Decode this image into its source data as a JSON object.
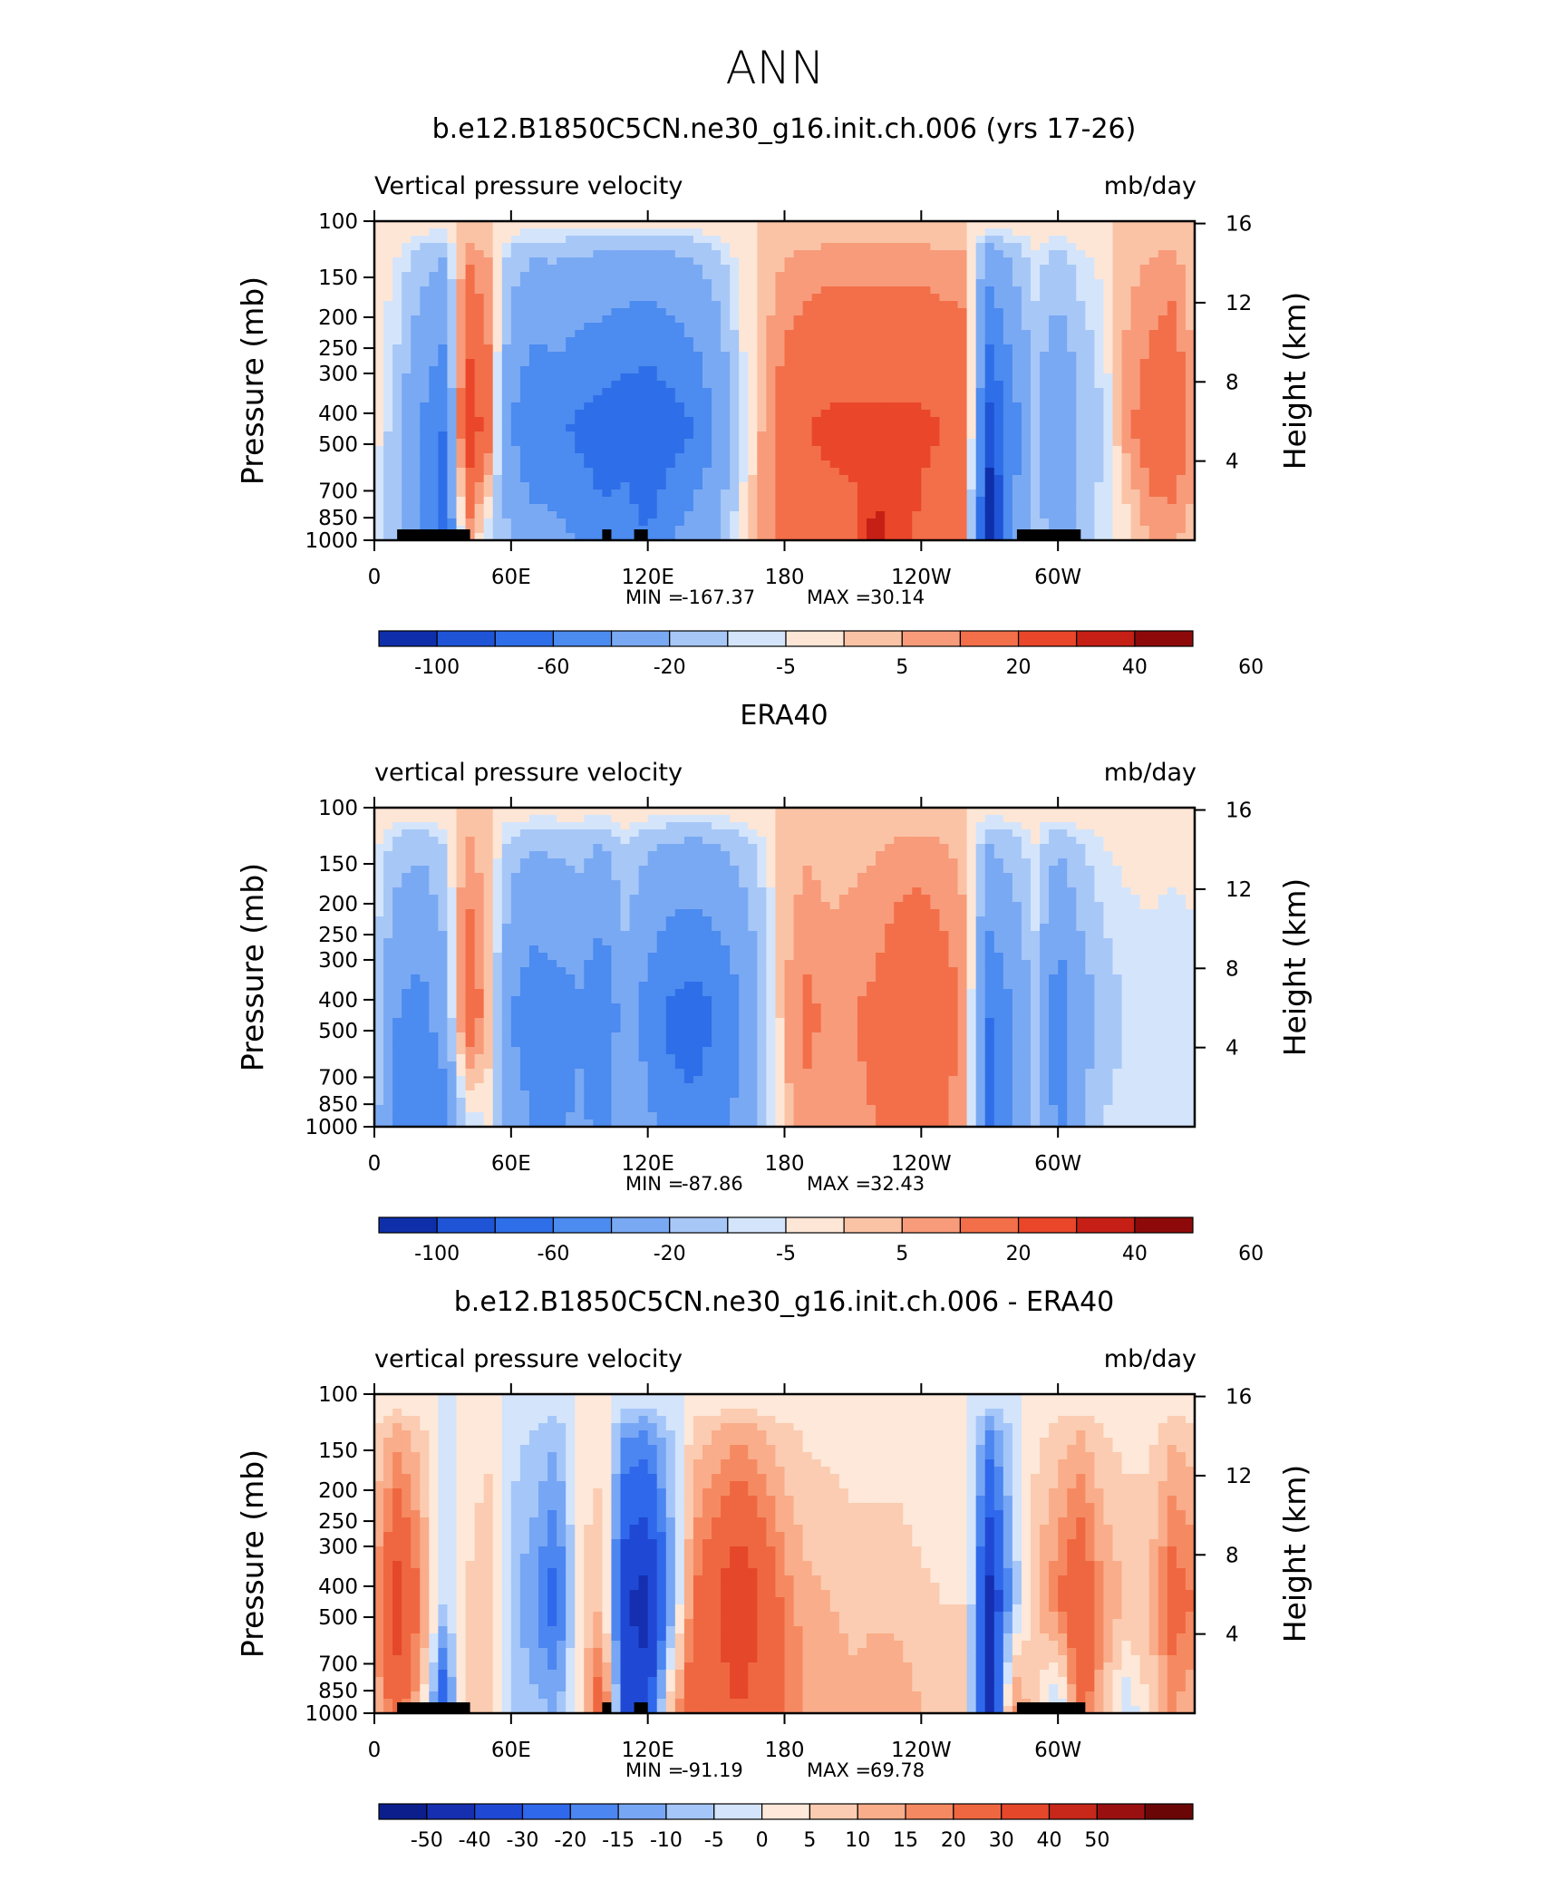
{
  "figure_title": "ANN",
  "palette_11": [
    "#0f2faa",
    "#1f54d6",
    "#2e6ee8",
    "#4c8bef",
    "#7aa9f3",
    "#a7c7f7",
    "#d4e5fb",
    "#fde6d6",
    "#fbc3a6",
    "#f89b7a",
    "#f26f4a",
    "#e9462a",
    "#c61f15",
    "#8e0a0a"
  ],
  "palette_16": [
    "#0b1e8c",
    "#152fb0",
    "#1f49d4",
    "#2f68ea",
    "#4c86f0",
    "#77a6f4",
    "#a5c6f8",
    "#d3e4fb",
    "#fde8d9",
    "#fbccb1",
    "#f9ad8a",
    "#f58a62",
    "#ef6740",
    "#e5472a",
    "#c7281a",
    "#9a1010",
    "#6b0606"
  ],
  "chart_data": [
    {
      "type": "heatmap",
      "title": "b.e12.B1850C5CN.ne30_g16.init.ch.006 (yrs 17-26)",
      "left_label": "Vertical pressure velocity",
      "right_label": "mb/day",
      "xlabel": "",
      "ylabel": "Pressure (mb)",
      "y2label": "Height (km)",
      "x_ticks": [
        "0",
        "60E",
        "120E",
        "180",
        "120W",
        "60W"
      ],
      "y_ticks": [
        "100",
        "150",
        "200",
        "250",
        "300",
        "400",
        "500",
        "700",
        "850",
        "1000"
      ],
      "y2_ticks": [
        "16",
        "12",
        "8",
        "4"
      ],
      "min_label": "MIN =",
      "min_value": "-167.37",
      "max_label": "MAX =",
      "max_value": "30.14",
      "colorbar_labels": [
        "-100",
        "-60",
        "-20",
        "-5",
        "5",
        "20",
        "40",
        "60"
      ],
      "colorbar_type": "11",
      "levels": [
        -100,
        -80,
        -60,
        -40,
        -20,
        -10,
        -5,
        0,
        5,
        10,
        20,
        30,
        40,
        50,
        60
      ],
      "field": {
        "lon": [
          0,
          10,
          20,
          30,
          40,
          50,
          60,
          70,
          80,
          90,
          100,
          110,
          120,
          130,
          140,
          150,
          160,
          170,
          180,
          190,
          200,
          210,
          220,
          230,
          240,
          250,
          260,
          270,
          280,
          290,
          300,
          310,
          320,
          330,
          340,
          350,
          360
        ],
        "cols": [
          {
            "up": -2,
            "lo": -4
          },
          {
            "up": -15,
            "lo": -20
          },
          {
            "up": -40,
            "lo": -30
          },
          {
            "up": -60,
            "lo": -80
          },
          {
            "up": 30,
            "lo": 10
          },
          {
            "up": 15,
            "lo": -10
          },
          {
            "up": -40,
            "lo": -20
          },
          {
            "up": -60,
            "lo": -30
          },
          {
            "up": -55,
            "lo": -35
          },
          {
            "up": -65,
            "lo": -40
          },
          {
            "up": -70,
            "lo": -55
          },
          {
            "up": -75,
            "lo": -45
          },
          {
            "up": -80,
            "lo": -60
          },
          {
            "up": -70,
            "lo": -40
          },
          {
            "up": -60,
            "lo": -30
          },
          {
            "up": -40,
            "lo": -20
          },
          {
            "up": -10,
            "lo": -5
          },
          {
            "up": 5,
            "lo": 6
          },
          {
            "up": 15,
            "lo": 12
          },
          {
            "up": 20,
            "lo": 14
          },
          {
            "up": 22,
            "lo": 16
          },
          {
            "up": 22,
            "lo": 18
          },
          {
            "up": 22,
            "lo": 35
          },
          {
            "up": 22,
            "lo": 25
          },
          {
            "up": 22,
            "lo": 18
          },
          {
            "up": 20,
            "lo": 12
          },
          {
            "up": 18,
            "lo": 10
          },
          {
            "up": -90,
            "lo": -120
          },
          {
            "up": -50,
            "lo": -40
          },
          {
            "up": -20,
            "lo": -10
          },
          {
            "up": -40,
            "lo": -30
          },
          {
            "up": -20,
            "lo": -15
          },
          {
            "up": -10,
            "lo": -6
          },
          {
            "up": 8,
            "lo": -4
          },
          {
            "up": 15,
            "lo": 6
          },
          {
            "up": 20,
            "lo": 5
          },
          {
            "up": 5,
            "lo": 3
          }
        ]
      },
      "land_blocks_lon": [
        [
          10,
          42
        ],
        [
          100,
          104
        ],
        [
          114,
          120
        ],
        [
          282,
          310
        ]
      ]
    },
    {
      "type": "heatmap",
      "title": "ERA40",
      "left_label": "vertical pressure velocity",
      "right_label": "mb/day",
      "xlabel": "",
      "ylabel": "Pressure (mb)",
      "y2label": "Height (km)",
      "x_ticks": [
        "0",
        "60E",
        "120E",
        "180",
        "120W",
        "60W"
      ],
      "y_ticks": [
        "100",
        "150",
        "200",
        "250",
        "300",
        "400",
        "500",
        "700",
        "850",
        "1000"
      ],
      "y2_ticks": [
        "16",
        "12",
        "8",
        "4"
      ],
      "min_label": "MIN =",
      "min_value": "-87.86",
      "max_label": "MAX =",
      "max_value": "32.43",
      "colorbar_labels": [
        "-100",
        "-60",
        "-20",
        "-5",
        "5",
        "20",
        "40",
        "60"
      ],
      "colorbar_type": "11",
      "levels": [
        -100,
        -80,
        -60,
        -40,
        -20,
        -10,
        -5,
        0,
        5,
        10,
        20,
        30,
        40,
        50,
        60
      ],
      "field": {
        "lon": [
          0,
          10,
          20,
          30,
          40,
          50,
          60,
          70,
          80,
          90,
          100,
          110,
          120,
          130,
          140,
          150,
          160,
          170,
          180,
          190,
          200,
          210,
          220,
          230,
          240,
          250,
          260,
          270,
          280,
          290,
          300,
          310,
          320,
          330,
          340,
          350,
          360
        ],
        "cols": [
          {
            "up": -10,
            "lo": -15
          },
          {
            "up": -40,
            "lo": -45
          },
          {
            "up": -50,
            "lo": -60
          },
          {
            "up": -30,
            "lo": -50
          },
          {
            "up": 20,
            "lo": -10
          },
          {
            "up": 5,
            "lo": -5
          },
          {
            "up": -40,
            "lo": -30
          },
          {
            "up": -55,
            "lo": -40
          },
          {
            "up": -50,
            "lo": -45
          },
          {
            "up": -45,
            "lo": -35
          },
          {
            "up": -60,
            "lo": -45
          },
          {
            "up": -30,
            "lo": -20
          },
          {
            "up": -50,
            "lo": -35
          },
          {
            "up": -65,
            "lo": -50
          },
          {
            "up": -70,
            "lo": -55
          },
          {
            "up": -60,
            "lo": -45
          },
          {
            "up": -45,
            "lo": -35
          },
          {
            "up": -20,
            "lo": -15
          },
          {
            "up": 5,
            "lo": 3
          },
          {
            "up": 12,
            "lo": 8
          },
          {
            "up": 8,
            "lo": 6
          },
          {
            "up": 10,
            "lo": 8
          },
          {
            "up": 12,
            "lo": 10
          },
          {
            "up": 18,
            "lo": 14
          },
          {
            "up": 20,
            "lo": 15
          },
          {
            "up": 15,
            "lo": 10
          },
          {
            "up": 8,
            "lo": 5
          },
          {
            "up": -60,
            "lo": -70
          },
          {
            "up": -40,
            "lo": -35
          },
          {
            "up": -15,
            "lo": -10
          },
          {
            "up": -55,
            "lo": -45
          },
          {
            "up": -30,
            "lo": -20
          },
          {
            "up": -15,
            "lo": -10
          },
          {
            "up": -10,
            "lo": -6
          },
          {
            "up": -8,
            "lo": -5
          },
          {
            "up": -10,
            "lo": -6
          },
          {
            "up": -8,
            "lo": -5
          }
        ]
      },
      "land_blocks_lon": []
    },
    {
      "type": "heatmap",
      "title": "b.e12.B1850C5CN.ne30_g16.init.ch.006 - ERA40",
      "left_label": "vertical pressure velocity",
      "right_label": "mb/day",
      "xlabel": "",
      "ylabel": "Pressure (mb)",
      "y2label": "Height (km)",
      "x_ticks": [
        "0",
        "60E",
        "120E",
        "180",
        "120W",
        "60W"
      ],
      "y_ticks": [
        "100",
        "150",
        "200",
        "250",
        "300",
        "400",
        "500",
        "700",
        "850",
        "1000"
      ],
      "y2_ticks": [
        "16",
        "12",
        "8",
        "4"
      ],
      "min_label": "MIN =",
      "min_value": "-91.19",
      "max_label": "MAX =",
      "max_value": "69.78",
      "colorbar_labels": [
        "-50",
        "-40",
        "-30",
        "-20",
        "-15",
        "-10",
        "-5",
        "0",
        "5",
        "10",
        "15",
        "20",
        "30",
        "40",
        "50"
      ],
      "colorbar_type": "16",
      "levels": [
        -50,
        -40,
        -30,
        -20,
        -15,
        -10,
        -5,
        0,
        5,
        10,
        15,
        20,
        30,
        40,
        50
      ],
      "field": {
        "lon": [
          0,
          10,
          20,
          30,
          40,
          50,
          60,
          70,
          80,
          90,
          100,
          110,
          120,
          130,
          140,
          150,
          160,
          170,
          180,
          190,
          200,
          210,
          220,
          230,
          240,
          250,
          260,
          270,
          280,
          290,
          300,
          310,
          320,
          330,
          340,
          350,
          360
        ],
        "cols": [
          {
            "up": 15,
            "lo": 10
          },
          {
            "up": 35,
            "lo": 25
          },
          {
            "up": 20,
            "lo": 10
          },
          {
            "up": -5,
            "lo": -30
          },
          {
            "up": 5,
            "lo": 10
          },
          {
            "up": 10,
            "lo": 5
          },
          {
            "up": -8,
            "lo": -5
          },
          {
            "up": -15,
            "lo": -8
          },
          {
            "up": -25,
            "lo": -10
          },
          {
            "up": 5,
            "lo": 3
          },
          {
            "up": 10,
            "lo": 30
          },
          {
            "up": -40,
            "lo": -30
          },
          {
            "up": -45,
            "lo": -35
          },
          {
            "up": -15,
            "lo": 10
          },
          {
            "up": 20,
            "lo": 30
          },
          {
            "up": 30,
            "lo": 25
          },
          {
            "up": 40,
            "lo": 30
          },
          {
            "up": 30,
            "lo": 25
          },
          {
            "up": 18,
            "lo": 20
          },
          {
            "up": 12,
            "lo": 15
          },
          {
            "up": 10,
            "lo": 15
          },
          {
            "up": 8,
            "lo": 12
          },
          {
            "up": 8,
            "lo": 15
          },
          {
            "up": 8,
            "lo": 14
          },
          {
            "up": 6,
            "lo": 10
          },
          {
            "up": 5,
            "lo": 8
          },
          {
            "up": 5,
            "lo": 6
          },
          {
            "up": -45,
            "lo": -50
          },
          {
            "up": -10,
            "lo": 20
          },
          {
            "up": 10,
            "lo": 5
          },
          {
            "up": 20,
            "lo": -10
          },
          {
            "up": 30,
            "lo": 25
          },
          {
            "up": 15,
            "lo": 10
          },
          {
            "up": 10,
            "lo": -5
          },
          {
            "up": 10,
            "lo": 5
          },
          {
            "up": 25,
            "lo": 15
          },
          {
            "up": 20,
            "lo": 10
          }
        ]
      },
      "land_blocks_lon": [
        [
          10,
          42
        ],
        [
          100,
          104
        ],
        [
          114,
          120
        ],
        [
          282,
          312
        ]
      ]
    }
  ]
}
